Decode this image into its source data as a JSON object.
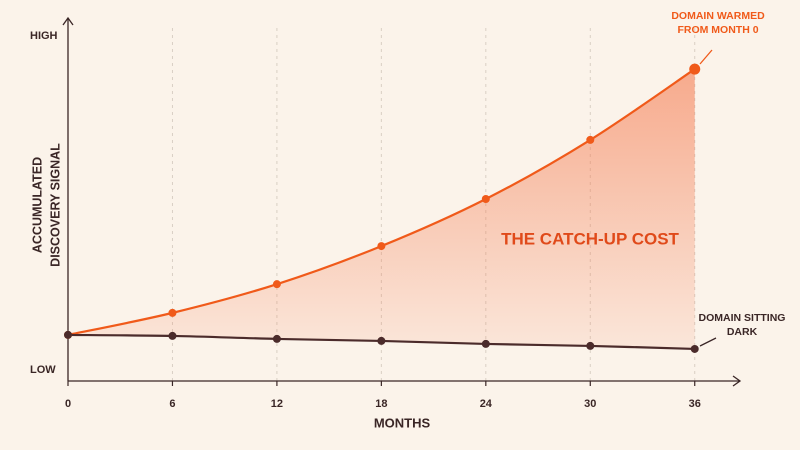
{
  "chart_data": {
    "type": "line",
    "x_label": "MONTHS",
    "y_label": [
      "ACCUMULATED",
      "DISCOVERY SIGNAL"
    ],
    "x": [
      0,
      6,
      12,
      18,
      24,
      30,
      36
    ],
    "xlim": [
      0,
      38.6
    ],
    "xticks": [
      0,
      6,
      12,
      18,
      24,
      30,
      36
    ],
    "ylim": [
      -3.3,
      104.8
    ],
    "yticks": [
      {
        "value": 0,
        "label": "LOW"
      },
      {
        "value": 100,
        "label": "HIGH"
      }
    ],
    "grid": true,
    "series": [
      {
        "color": "#f05a1a",
        "values": [
          10.5,
          17.1,
          25.7,
          37.1,
          51.2,
          68.9,
          90.1
        ]
      },
      {
        "color": "#4b2b2b",
        "values": [
          10.5,
          10.2,
          9.3,
          8.7,
          7.8,
          7.2,
          6.3
        ]
      }
    ],
    "annotations": [
      [
        "DOMAIN WARMED",
        "FROM MONTH 0"
      ],
      [
        "THE CATCH-UP COST"
      ],
      [
        "DOMAIN SITTING",
        "DARK"
      ]
    ]
  }
}
